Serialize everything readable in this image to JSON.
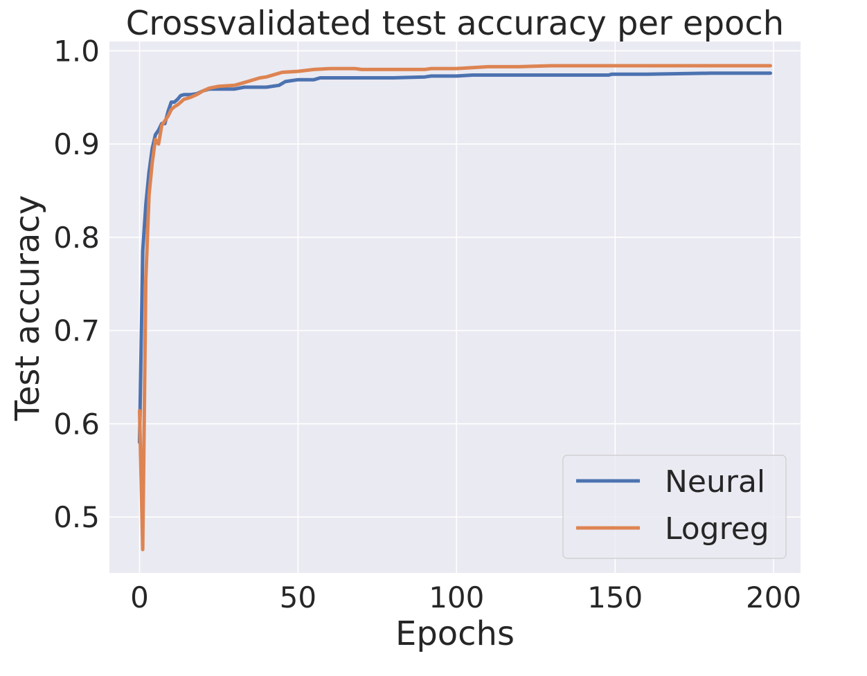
{
  "chart_data": {
    "type": "line",
    "title": "Crossvalidated test accuracy per epoch",
    "xlabel": "Epochs",
    "ylabel": "Test accuracy",
    "xlim": [
      -9.5,
      208.5
    ],
    "ylim": [
      0.44,
      1.01
    ],
    "xticks": [
      0,
      50,
      100,
      150,
      200
    ],
    "xtick_labels": [
      "0",
      "50",
      "100",
      "150",
      "200"
    ],
    "yticks": [
      0.5,
      0.6,
      0.7,
      0.8,
      0.9,
      1.0
    ],
    "ytick_labels": [
      "0.5",
      "0.6",
      "0.7",
      "0.8",
      "0.9",
      "1.0"
    ],
    "grid": true,
    "legend_position": "lower-right",
    "colors": {
      "background": "#eaeaf2",
      "grid": "#ffffff",
      "neural": "#4c72b0",
      "logreg": "#dd8452"
    },
    "series": [
      {
        "name": "Neural",
        "color": "#4c72b0",
        "x": [
          0,
          1,
          2,
          3,
          4,
          5,
          6,
          7,
          8,
          9,
          10,
          11,
          12,
          13,
          14,
          15,
          16,
          18,
          20,
          22,
          25,
          30,
          33,
          40,
          44,
          46,
          50,
          55,
          57,
          60,
          70,
          80,
          90,
          92,
          95,
          100,
          105,
          110,
          120,
          130,
          140,
          148,
          149,
          150,
          160,
          180,
          199
        ],
        "y": [
          0.58,
          0.785,
          0.835,
          0.87,
          0.895,
          0.91,
          0.915,
          0.922,
          0.922,
          0.935,
          0.945,
          0.945,
          0.948,
          0.952,
          0.953,
          0.953,
          0.953,
          0.954,
          0.957,
          0.959,
          0.959,
          0.959,
          0.961,
          0.961,
          0.963,
          0.967,
          0.969,
          0.969,
          0.971,
          0.971,
          0.971,
          0.971,
          0.972,
          0.973,
          0.973,
          0.973,
          0.974,
          0.974,
          0.974,
          0.974,
          0.974,
          0.974,
          0.975,
          0.975,
          0.975,
          0.976,
          0.976
        ]
      },
      {
        "name": "Logreg",
        "color": "#dd8452",
        "x": [
          0,
          1,
          2,
          3,
          4,
          5,
          6,
          7,
          8,
          9,
          10,
          11,
          12,
          13,
          14,
          15,
          16,
          18,
          20,
          22,
          25,
          30,
          33,
          35,
          38,
          40,
          43,
          45,
          50,
          55,
          60,
          65,
          68,
          70,
          80,
          90,
          92,
          100,
          105,
          110,
          120,
          130,
          150,
          199
        ],
        "y": [
          0.614,
          0.465,
          0.755,
          0.845,
          0.88,
          0.905,
          0.9,
          0.92,
          0.925,
          0.93,
          0.937,
          0.94,
          0.942,
          0.945,
          0.948,
          0.949,
          0.95,
          0.953,
          0.957,
          0.96,
          0.962,
          0.963,
          0.966,
          0.968,
          0.971,
          0.972,
          0.975,
          0.977,
          0.978,
          0.98,
          0.981,
          0.981,
          0.981,
          0.98,
          0.98,
          0.98,
          0.981,
          0.981,
          0.982,
          0.983,
          0.983,
          0.984,
          0.984,
          0.984
        ]
      }
    ]
  }
}
